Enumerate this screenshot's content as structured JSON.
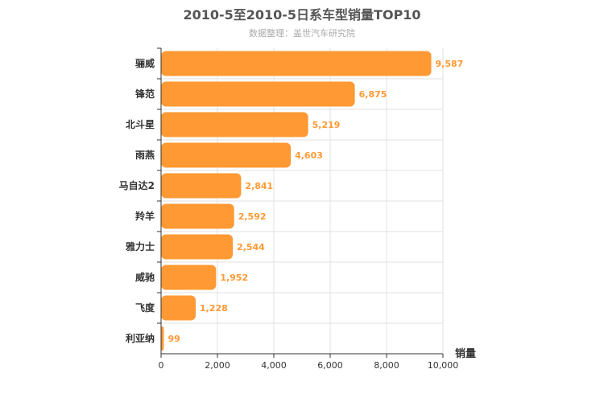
{
  "chart_data": {
    "type": "bar",
    "orientation": "horizontal",
    "title": "2010-5至2010-5日系车型销量TOP10",
    "subtitle": "数据整理：盖世汽车研究院",
    "categories": [
      "骊威",
      "锋范",
      "北斗星",
      "雨燕",
      "马自达2",
      "羚羊",
      "雅力士",
      "威驰",
      "飞度",
      "利亚纳"
    ],
    "values": [
      9587,
      6875,
      5219,
      4603,
      2841,
      2592,
      2544,
      1952,
      1228,
      99
    ],
    "value_labels": [
      "9,587",
      "6,875",
      "5,219",
      "4,603",
      "2,841",
      "2,592",
      "2,544",
      "1,952",
      "1,228",
      "99"
    ],
    "xlabel": "销量",
    "ylabel": "",
    "xlim": [
      0,
      10000
    ],
    "x_ticks": [
      0,
      2000,
      4000,
      6000,
      8000,
      10000
    ],
    "x_tick_labels": [
      "0",
      "2,000",
      "4,000",
      "6,000",
      "8,000",
      "10,000"
    ],
    "grid": true,
    "bar_color": "#ff9933",
    "label_color": "#ff9933"
  }
}
